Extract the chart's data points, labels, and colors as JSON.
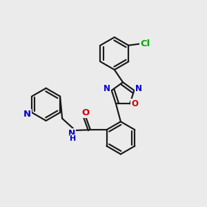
{
  "background_color": "#ebebeb",
  "bond_color": "#1a1a1a",
  "bond_width": 1.6,
  "atom_colors": {
    "N": "#0000cc",
    "O": "#cc0000",
    "Cl": "#00aa00"
  },
  "figsize": [
    3.0,
    3.0
  ],
  "dpi": 100,
  "xlim": [
    0.0,
    6.0
  ],
  "ylim": [
    0.0,
    6.5
  ]
}
